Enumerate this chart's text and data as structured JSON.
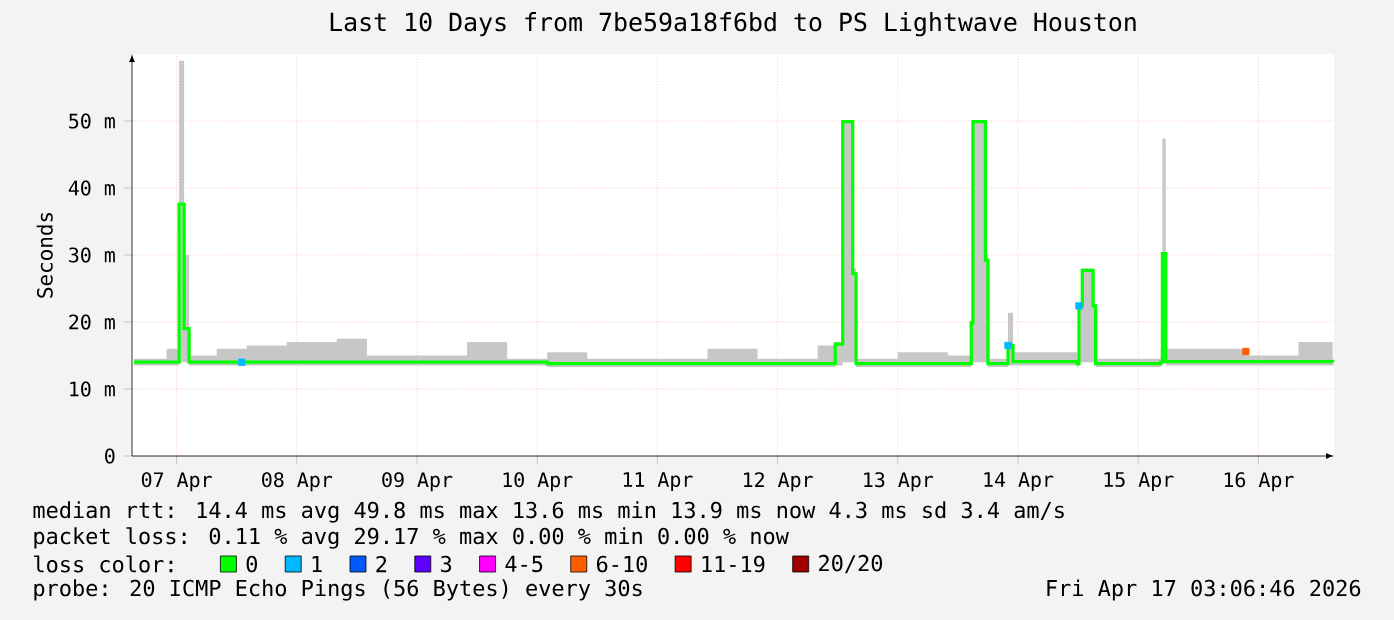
{
  "chart_data": {
    "type": "step",
    "title": "Last 10 Days from 7be59a18f6bd to PS Lightwave Houston",
    "ylabel": "Seconds",
    "legend_title": "loss color:",
    "legend": "bottom",
    "grid": true,
    "xlim": [
      "2026-04-07T03:06",
      "2026-04-17T03:06"
    ],
    "xticks": [
      {
        "value": "2026-04-07T12:00",
        "label": "07 Apr"
      },
      {
        "value": "2026-04-08T12:00",
        "label": "08 Apr"
      },
      {
        "value": "2026-04-09T12:00",
        "label": "09 Apr"
      },
      {
        "value": "2026-04-10T12:00",
        "label": "10 Apr"
      },
      {
        "value": "2026-04-11T12:00",
        "label": "11 Apr"
      },
      {
        "value": "2026-04-12T12:00",
        "label": "12 Apr"
      },
      {
        "value": "2026-04-13T12:00",
        "label": "13 Apr"
      },
      {
        "value": "2026-04-14T12:00",
        "label": "14 Apr"
      },
      {
        "value": "2026-04-15T12:00",
        "label": "15 Apr"
      },
      {
        "value": "2026-04-16T12:00",
        "label": "16 Apr"
      }
    ],
    "ylim": [
      0,
      60
    ],
    "yticks": [
      0,
      {
        "value": 10,
        "label": "10 m"
      },
      {
        "value": 20,
        "label": "20 m"
      },
      {
        "value": 30,
        "label": "30 m"
      },
      {
        "value": 40,
        "label": "40 m"
      },
      {
        "value": 50,
        "label": "50 m"
      }
    ],
    "series": [
      {
        "name": "0",
        "color": "#00ff00",
        "x": [
          "2026-04-07T03:30",
          "2026-04-07T10:00",
          "2026-04-07T12:30",
          "2026-04-07T13:30",
          "2026-04-07T14:30",
          "2026-04-07T20:00",
          "2026-04-08T02:00",
          "2026-04-08T10:00",
          "2026-04-08T20:00",
          "2026-04-09T02:00",
          "2026-04-09T12:00",
          "2026-04-09T22:00",
          "2026-04-10T06:00",
          "2026-04-10T14:00",
          "2026-04-10T22:00",
          "2026-04-11T12:00",
          "2026-04-11T22:00",
          "2026-04-12T08:00",
          "2026-04-12T20:00",
          "2026-04-12T23:30",
          "2026-04-13T01:00",
          "2026-04-13T03:00",
          "2026-04-13T03:40",
          "2026-04-13T12:00",
          "2026-04-13T22:00",
          "2026-04-14T02:40",
          "2026-04-14T03:00",
          "2026-04-14T05:30",
          "2026-04-14T06:00",
          "2026-04-14T10:00",
          "2026-04-14T11:00",
          "2026-04-14T23:50",
          "2026-04-15T00:10",
          "2026-04-15T00:50",
          "2026-04-15T03:00",
          "2026-04-15T03:30",
          "2026-04-15T16:30",
          "2026-04-15T16:50",
          "2026-04-15T17:30",
          "2026-04-16T09:00",
          "2026-04-16T09:30",
          "2026-04-16T10:00",
          "2026-04-16T20:00",
          "2026-04-17T02:50"
        ],
        "values": [
          14,
          14,
          37.6,
          19,
          14,
          14,
          14,
          14,
          14,
          14,
          14,
          14,
          14,
          13.8,
          13.8,
          13.8,
          13.8,
          13.8,
          13.8,
          16.7,
          49.9,
          27.2,
          13.8,
          13.8,
          13.8,
          19.9,
          49.9,
          29.2,
          13.8,
          16.5,
          14.1,
          13.8,
          22.4,
          27.7,
          22.4,
          13.8,
          14,
          30.2,
          14.1,
          14.1,
          14.1,
          14.1,
          14.1,
          14
        ],
        "lower": [
          13.5,
          13.5,
          14,
          14,
          13.5,
          13.5,
          13.5,
          13.5,
          13.5,
          13.5,
          13.5,
          13.5,
          13.5,
          13.3,
          13.3,
          13.3,
          13.3,
          13.3,
          13.3,
          13.5,
          14,
          14,
          13.3,
          13.3,
          13.3,
          14,
          14,
          14,
          13.3,
          13.5,
          13.5,
          13.3,
          14,
          14,
          14,
          13.3,
          13.5,
          14,
          13.5,
          13.5,
          13.5,
          13.5,
          13.5,
          13.5
        ],
        "upper": [
          14.5,
          16,
          59,
          30,
          15,
          16,
          16.5,
          17,
          17.5,
          15,
          15,
          17,
          14.5,
          15.5,
          14.5,
          14.5,
          16,
          14.5,
          16.5,
          17,
          50,
          28,
          14.5,
          15.5,
          15,
          20,
          50,
          30,
          14.5,
          21.4,
          15.5,
          14.5,
          22.5,
          28,
          22.5,
          14.5,
          16,
          47.4,
          16,
          15.5,
          16,
          15,
          17,
          14.5
        ]
      },
      {
        "name": "1",
        "color": "#00b8ff",
        "type": "scatter",
        "marker": "square",
        "x": [
          "2026-04-08T01:00",
          "2026-04-14T10:00",
          "2026-04-15T00:10"
        ],
        "values": [
          14,
          16.5,
          22.4
        ]
      },
      {
        "name": "2",
        "color": "#0059ff"
      },
      {
        "name": "3",
        "color": "#5e00ff"
      },
      {
        "name": "4-5",
        "color": "#ff00ff"
      },
      {
        "name": "6-10",
        "color": "#ff5e00",
        "type": "scatter",
        "marker": "square",
        "x": [
          "2026-04-16T09:30"
        ],
        "values": [
          15.6
        ]
      },
      {
        "name": "11-19",
        "color": "#ff0000"
      },
      {
        "name": "20/20",
        "color": "#a10000"
      }
    ],
    "annotations": [
      "median rtt:  14.4 ms avg  49.8 ms max  13.6 ms min  13.9 ms now  4.3 ms sd  3.4   am/s",
      "packet loss: 0.11 % avg  29.17 % max  0.00 % min  0.00 % now",
      "probe:       20 ICMP Echo Pings (56 Bytes) every 30s",
      "Fri Apr 17 03:06:46 2026"
    ]
  }
}
